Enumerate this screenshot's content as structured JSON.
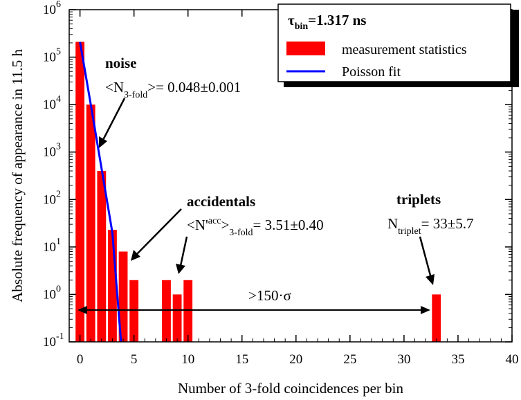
{
  "chart_data": {
    "type": "bar",
    "log_scale_y": true,
    "xlabel": "Number of 3-fold coincidences per bin",
    "ylabel": "Absolute frequency of appearance in 11.5 h",
    "xlim": [
      -1,
      40
    ],
    "ylim": [
      0.1,
      1000000
    ],
    "x_ticks": [
      0,
      5,
      10,
      15,
      20,
      25,
      30,
      35,
      40
    ],
    "y_ticks": [
      {
        "value": 0.1,
        "base": "10",
        "exp": "-1"
      },
      {
        "value": 1,
        "base": "10",
        "exp": "0"
      },
      {
        "value": 10,
        "base": "10",
        "exp": "1"
      },
      {
        "value": 100,
        "base": "10",
        "exp": "2"
      },
      {
        "value": 1000,
        "base": "10",
        "exp": "3"
      },
      {
        "value": 10000,
        "base": "10",
        "exp": "4"
      },
      {
        "value": 100000,
        "base": "10",
        "exp": "5"
      },
      {
        "value": 1000000,
        "base": "10",
        "exp": "6"
      }
    ],
    "bars": {
      "name": "measurement statistics",
      "color": "#ff0000",
      "x": [
        0,
        1,
        2,
        3,
        4,
        5,
        8,
        9,
        10,
        33
      ],
      "values": [
        210000,
        10000,
        400,
        23,
        8,
        2,
        2,
        1,
        2,
        1
      ]
    },
    "fit": {
      "name": "Poisson fit",
      "color": "#0000ff",
      "x": [
        0,
        1,
        2,
        3,
        3.8
      ],
      "values": [
        210000,
        10000,
        450,
        20,
        0.1
      ]
    },
    "legend": {
      "title_symbol": "τ",
      "title_sub": "bin",
      "title_rest": "=1.317 ns",
      "entries": [
        "measurement statistics",
        "Poisson fit"
      ]
    },
    "annotations": {
      "noise_label": "noise",
      "noise_value_pre": "<N",
      "noise_value_sub": "3-fold",
      "noise_value_post": ">= 0.048±0.001",
      "accidentals_label": "accidentals",
      "acc_value_pre": "<N'",
      "acc_value_sup": "acc",
      "acc_value_mid": ">",
      "acc_value_sub": "3-fold",
      "acc_value_post": "= 3.51±0.40",
      "triplets_label": "triplets",
      "triplet_value_pre": "N",
      "triplet_value_sub": "triplet",
      "triplet_value_post": "= 33±5.7",
      "sigma_label": ">150·σ"
    }
  }
}
